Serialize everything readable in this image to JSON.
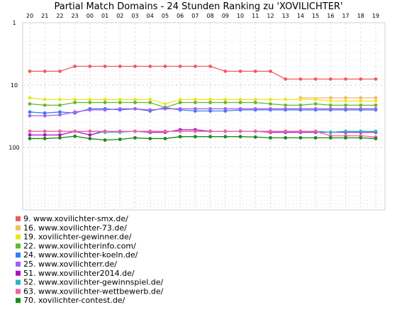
{
  "chart_data": {
    "type": "line",
    "title": "Partial Match Domains - 24 Stunden Ranking zu 'XOVILICHTER'",
    "xlabel": "",
    "ylabel": "",
    "y_scale": "log",
    "y_inverted": true,
    "ylim": [
      1,
      1000
    ],
    "y_ticks": [
      1,
      10,
      100
    ],
    "x": [
      "20",
      "21",
      "22",
      "23",
      "00",
      "01",
      "02",
      "03",
      "04",
      "05",
      "06",
      "07",
      "08",
      "09",
      "10",
      "11",
      "12",
      "13",
      "14",
      "15",
      "16",
      "17",
      "18",
      "19"
    ],
    "grid": true,
    "legend_position": "bottom-left",
    "series": [
      {
        "name": "9. www.xovilichter-smx.de/",
        "color": "#f05a5a",
        "values": [
          6,
          6,
          6,
          5,
          5,
          5,
          5,
          5,
          5,
          5,
          5,
          5,
          5,
          6,
          6,
          6,
          6,
          8,
          8,
          8,
          8,
          8,
          8,
          8
        ]
      },
      {
        "name": "16. www.xovilichter-73.de/",
        "color": "#f5b967",
        "values": [
          null,
          null,
          null,
          null,
          null,
          null,
          null,
          null,
          null,
          null,
          null,
          null,
          null,
          null,
          null,
          null,
          null,
          null,
          16,
          null,
          16,
          16,
          16,
          16
        ]
      },
      {
        "name": "19. xovilichter-gewinner.de/",
        "color": "#e8e820",
        "values": [
          16,
          17,
          17,
          17,
          17,
          17,
          17,
          17,
          17,
          20,
          17,
          17,
          17,
          17,
          17,
          17,
          17,
          17,
          17,
          17,
          18,
          18,
          18,
          18
        ]
      },
      {
        "name": "22. www.xovilichterinfo.com/",
        "color": "#63b92b",
        "values": [
          20,
          21,
          21,
          19,
          19,
          19,
          19,
          19,
          19,
          23,
          19,
          19,
          19,
          19,
          19,
          19,
          20,
          21,
          21,
          20,
          21,
          21,
          21,
          21
        ]
      },
      {
        "name": "24. www.xovilichter-koeln.de/",
        "color": "#2f7ff0",
        "values": [
          27,
          28,
          27,
          28,
          24,
          24,
          25,
          24,
          26,
          23,
          25,
          26,
          26,
          26,
          25,
          25,
          25,
          25,
          25,
          25,
          25,
          25,
          25,
          25
        ]
      },
      {
        "name": "25. www.xovilichterr.de/",
        "color": "#a75ef0",
        "values": [
          31,
          31,
          30,
          27,
          25,
          25,
          24,
          24,
          25,
          24,
          24,
          24,
          24,
          24,
          24,
          24,
          24,
          24,
          24,
          24,
          24,
          24,
          24,
          24
        ]
      },
      {
        "name": "51. www.xovilichter2014.de/",
        "color": "#b010c0",
        "values": [
          63,
          63,
          63,
          55,
          63,
          55,
          55,
          55,
          57,
          57,
          52,
          52,
          55,
          55,
          55,
          55,
          57,
          57,
          57,
          57,
          57,
          57,
          57,
          57
        ]
      },
      {
        "name": "52. www.xovilichter-gewinnspiel.de/",
        "color": "#2ab5c9",
        "values": [
          55,
          55,
          55,
          55,
          55,
          57,
          57,
          55,
          55,
          55,
          55,
          55,
          55,
          55,
          55,
          55,
          55,
          55,
          55,
          55,
          57,
          55,
          55,
          55
        ]
      },
      {
        "name": "63. www.xovilichter-wettbewerb.de/",
        "color": "#f060a5",
        "values": [
          55,
          55,
          55,
          55,
          55,
          55,
          55,
          55,
          55,
          55,
          55,
          55,
          55,
          55,
          55,
          55,
          55,
          55,
          55,
          55,
          65,
          65,
          65,
          68
        ]
      },
      {
        "name": "70. xovilichter-contest.de/",
        "color": "#188a18",
        "values": [
          72,
          72,
          70,
          66,
          72,
          76,
          74,
          70,
          72,
          72,
          67,
          67,
          67,
          67,
          67,
          68,
          70,
          70,
          70,
          70,
          70,
          70,
          70,
          72
        ]
      }
    ]
  }
}
